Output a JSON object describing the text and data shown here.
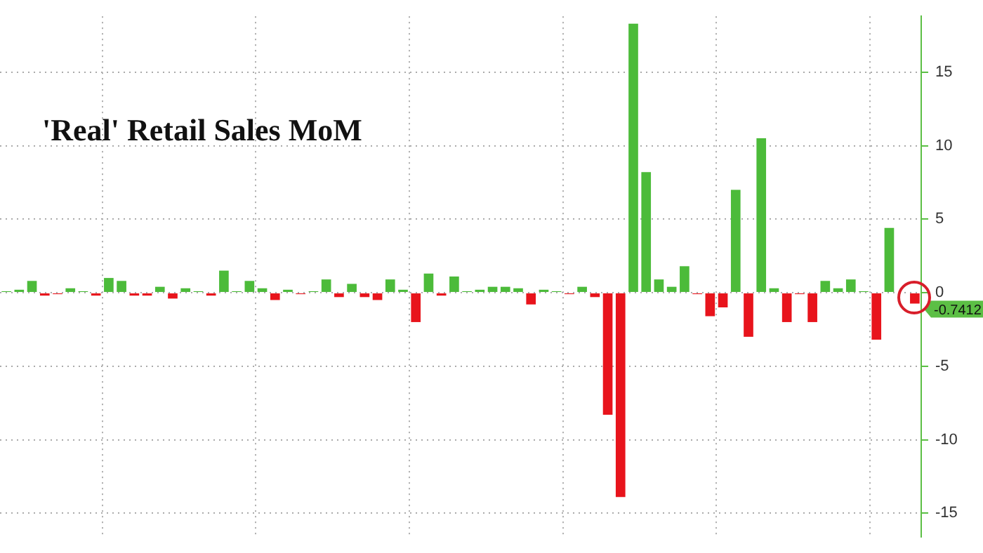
{
  "chart_data": {
    "type": "bar",
    "title": "'Real' Retail Sales MoM",
    "categories": [
      null,
      null,
      null,
      null,
      null,
      null,
      null,
      null,
      null,
      null,
      null,
      null,
      null,
      null,
      null,
      null,
      null,
      null,
      null,
      null,
      null,
      null,
      null,
      null,
      null,
      null,
      null,
      null,
      null,
      null,
      null,
      null,
      null,
      null,
      null,
      null,
      null,
      null,
      null,
      null,
      null,
      null,
      null,
      null,
      null,
      null,
      null,
      null,
      null,
      null,
      null,
      null,
      null,
      null,
      null,
      null,
      null,
      null,
      null,
      null,
      null,
      null,
      null,
      null,
      null,
      null,
      null,
      null,
      null,
      null,
      null,
      null
    ],
    "values": [
      0.1,
      0.2,
      0.8,
      -0.2,
      -0.1,
      0.3,
      0.1,
      -0.2,
      1.0,
      0.8,
      -0.2,
      -0.2,
      0.4,
      -0.4,
      0.3,
      0.1,
      -0.2,
      1.5,
      0.1,
      0.8,
      0.3,
      -0.5,
      0.2,
      -0.1,
      0.1,
      0.9,
      -0.3,
      0.6,
      -0.3,
      -0.5,
      0.9,
      0.2,
      -2.0,
      1.3,
      -0.2,
      1.1,
      0.1,
      0.2,
      0.4,
      0.4,
      0.3,
      -0.8,
      0.2,
      0.1,
      -0.1,
      0.4,
      -0.3,
      -8.3,
      -13.9,
      18.3,
      8.2,
      0.9,
      0.4,
      1.8,
      -0.1,
      -1.6,
      -1.0,
      7.0,
      -3.0,
      10.5,
      0.3,
      -2.0,
      -0.1,
      -2.0,
      0.8,
      0.3,
      0.9,
      0.1,
      -3.2,
      4.4,
      0,
      -0.7412
    ],
    "colors": [
      "#4cbb3a",
      "#4cbb3a",
      "#4cbb3a",
      "#e8141c",
      "#e8141c",
      "#4cbb3a",
      "#4cbb3a",
      "#e8141c",
      "#4cbb3a",
      "#4cbb3a",
      "#e8141c",
      "#e8141c",
      "#4cbb3a",
      "#e8141c",
      "#4cbb3a",
      "#4cbb3a",
      "#e8141c",
      "#4cbb3a",
      "#4cbb3a",
      "#4cbb3a",
      "#4cbb3a",
      "#e8141c",
      "#4cbb3a",
      "#e8141c",
      "#4cbb3a",
      "#4cbb3a",
      "#e8141c",
      "#4cbb3a",
      "#e8141c",
      "#e8141c",
      "#4cbb3a",
      "#4cbb3a",
      "#e8141c",
      "#4cbb3a",
      "#e8141c",
      "#4cbb3a",
      "#4cbb3a",
      "#4cbb3a",
      "#4cbb3a",
      "#4cbb3a",
      "#4cbb3a",
      "#e8141c",
      "#4cbb3a",
      "#4cbb3a",
      "#e8141c",
      "#4cbb3a",
      "#e8141c",
      "#e8141c",
      "#e8141c",
      "#4cbb3a",
      "#4cbb3a",
      "#4cbb3a",
      "#4cbb3a",
      "#4cbb3a",
      "#e8141c",
      "#e8141c",
      "#e8141c",
      "#4cbb3a",
      "#e8141c",
      "#4cbb3a",
      "#4cbb3a",
      "#e8141c",
      "#e8141c",
      "#e8141c",
      "#4cbb3a",
      "#4cbb3a",
      "#4cbb3a",
      "#4cbb3a",
      "#e8141c",
      "#4cbb3a",
      "#4cbb3a",
      "#e8141c"
    ],
    "ylim": [
      -16.6,
      18.8
    ],
    "yticks": [
      -15,
      -10,
      -5,
      0,
      5,
      10,
      15
    ],
    "grid": true,
    "annotations": [
      "-0.7412"
    ]
  }
}
